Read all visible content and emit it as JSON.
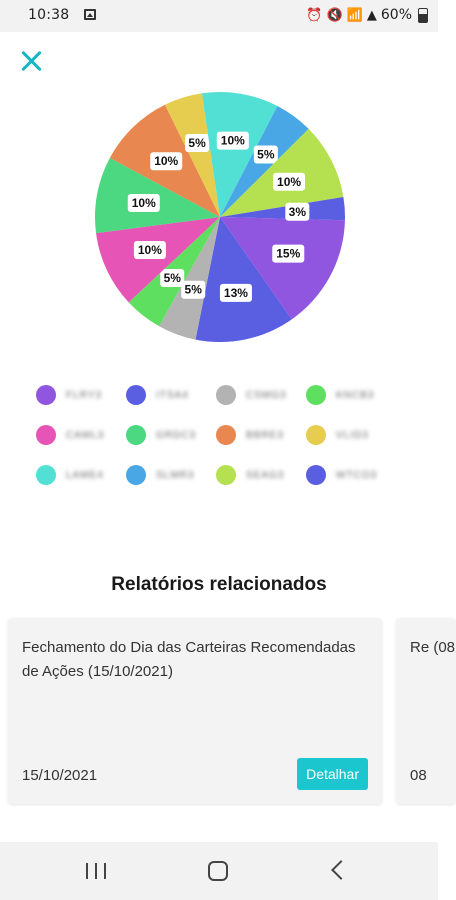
{
  "status_bar": {
    "time": "10:38",
    "battery": "60%",
    "icons": [
      "image-icon",
      "alarm-icon",
      "mute-icon",
      "wifi-icon",
      "signal-icon",
      "battery-icon"
    ]
  },
  "close_icon": "close-icon",
  "chart_data": {
    "type": "pie",
    "slices": [
      {
        "value": 15,
        "label": "15%",
        "color": "#9156e0"
      },
      {
        "value": 13,
        "label": "13%",
        "color": "#5a5ee0"
      },
      {
        "value": 5,
        "label": "5%",
        "color": "#b3b3b3"
      },
      {
        "value": 5,
        "label": "5%",
        "color": "#5fdf5f"
      },
      {
        "value": 10,
        "label": "10%",
        "color": "#e655b5"
      },
      {
        "value": 10,
        "label": "10%",
        "color": "#4cd880"
      },
      {
        "value": 10,
        "label": "10%",
        "color": "#e8874f"
      },
      {
        "value": 5,
        "label": "5%",
        "color": "#e6cd4f"
      },
      {
        "value": 10,
        "label": "10%",
        "color": "#52e0d4"
      },
      {
        "value": 5,
        "label": "5%",
        "color": "#4aa7e6"
      },
      {
        "value": 10,
        "label": "10%",
        "color": "#b5e04f"
      },
      {
        "value": 3,
        "label": "3%",
        "color": "#5a5ee0"
      }
    ],
    "legend": [
      {
        "label": "FLRY3",
        "color": "#9156e0"
      },
      {
        "label": "ITSA4",
        "color": "#5a5ee0"
      },
      {
        "label": "CSMG3",
        "color": "#b3b3b3"
      },
      {
        "label": "KNCB3",
        "color": "#5fdf5f"
      },
      {
        "label": "CAML3",
        "color": "#e655b5"
      },
      {
        "label": "GRDC3",
        "color": "#4cd880"
      },
      {
        "label": "BBRE3",
        "color": "#e8874f"
      },
      {
        "label": "VLID3",
        "color": "#e6cd4f"
      },
      {
        "label": "LAME4",
        "color": "#52e0d4"
      },
      {
        "label": "SLMR3",
        "color": "#4aa7e6"
      },
      {
        "label": "SEAG3",
        "color": "#b5e04f"
      },
      {
        "label": "WTCO3",
        "color": "#5a5ee0"
      }
    ]
  },
  "related": {
    "title": "Relatórios relacionados",
    "cards": [
      {
        "title": "Fechamento do Dia das Carteiras Recomendadas de Ações (15/10/2021)",
        "date": "15/10/2021",
        "button": "Detalhar"
      },
      {
        "title": "Re (08",
        "date": "08"
      }
    ]
  },
  "nav": {
    "icons": [
      "recent-apps-icon",
      "home-icon",
      "back-icon"
    ]
  }
}
